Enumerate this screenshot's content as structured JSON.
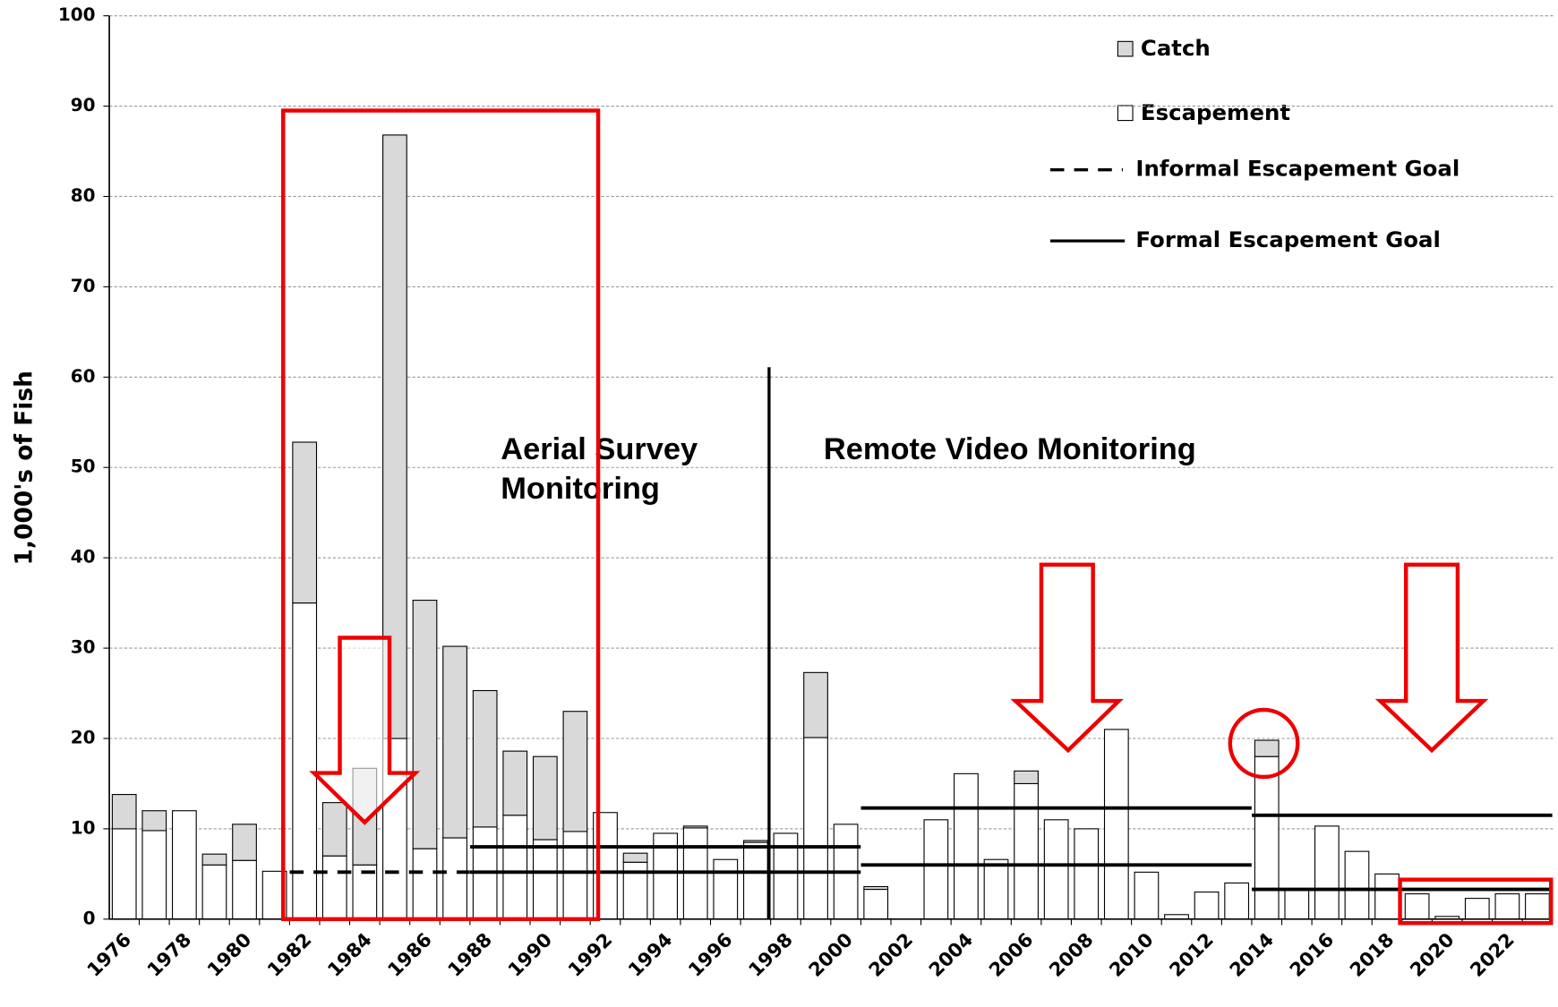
{
  "chart_data": {
    "type": "stacked-bar",
    "y_label": "1,000's of Fish",
    "categories": [
      "1976",
      null,
      "1978",
      null,
      "1980",
      null,
      "1982",
      null,
      "1984",
      null,
      "1986",
      null,
      "1988",
      null,
      "1990",
      null,
      "1992",
      null,
      "1994",
      null,
      "1996",
      null,
      "1998",
      null,
      "2000",
      null,
      "2002",
      null,
      "2004",
      null,
      "2006",
      null,
      "2008",
      null,
      "2010",
      null,
      "2012",
      null,
      "2014",
      null,
      "2016",
      null,
      "2018",
      null,
      "2020",
      null,
      "2022",
      null
    ],
    "series": [
      {
        "name": "Escapement",
        "color": "#ffffff",
        "values": [
          10,
          9.8,
          12,
          6,
          6.5,
          5.3,
          35,
          7,
          6,
          20,
          7.8,
          9,
          10.2,
          11.5,
          8.8,
          9.7,
          11.8,
          6.3,
          9.5,
          10.1,
          6.6,
          8.5,
          9.5,
          20.1,
          10.5,
          3.3,
          null,
          11,
          16.1,
          6.6,
          15,
          11,
          10,
          21,
          5.2,
          0.5,
          3,
          4,
          18,
          3.3,
          10.3,
          7.5,
          5,
          2.8,
          0.3,
          2.3,
          2.8,
          2.8
        ]
      },
      {
        "name": "Catch",
        "color": "#d9d9d9",
        "values": [
          3.8,
          2.2,
          0,
          1.2,
          4,
          0,
          17.8,
          5.9,
          10.7,
          66.8,
          27.5,
          21.2,
          15.1,
          7.1,
          9.2,
          13.3,
          0,
          1,
          0,
          0.2,
          0,
          0.2,
          0,
          7.2,
          0,
          0.3,
          null,
          0,
          0,
          0,
          1.4,
          0,
          0,
          0,
          0,
          0,
          0,
          0,
          1.8,
          0,
          0,
          0,
          0,
          0,
          0,
          0,
          0,
          0
        ]
      }
    ],
    "goals": [
      {
        "name": "Informal Escapement Goal",
        "style": "dashed",
        "segments": [
          {
            "from": 1982,
            "to": 1987,
            "value": 5.2
          }
        ]
      },
      {
        "name": "Formal Escapement Goal",
        "style": "solid",
        "segments": [
          {
            "from": 1988,
            "to": 2000,
            "value": 5.2
          },
          {
            "from": 1988,
            "to": 2000,
            "value": 8
          },
          {
            "from": 2001,
            "to": 2013,
            "value": 6
          },
          {
            "from": 2001,
            "to": 2013,
            "value": 12.3
          },
          {
            "from": 2014,
            "to": 2023,
            "value": 3.3
          },
          {
            "from": 2014,
            "to": 2023,
            "value": 11.5
          }
        ]
      }
    ],
    "first_year": 1976,
    "annotations": [
      "Aerial Survey",
      "Monitoring",
      "Remote Video Monitoring"
    ],
    "ylim": [
      0,
      100
    ],
    "yticks": [
      0,
      10,
      20,
      30,
      40,
      50,
      60,
      70,
      80,
      90,
      100
    ],
    "grid": true
  }
}
